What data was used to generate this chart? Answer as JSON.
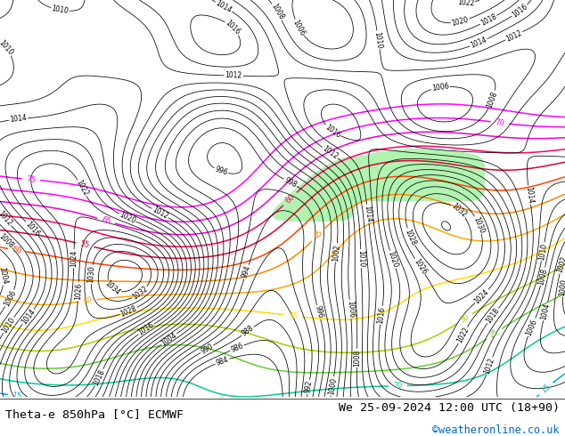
{
  "title_left": "Theta-e 850hPa [°C] ECMWF",
  "title_right": "We 25-09-2024 12:00 UTC (18+90)",
  "title_right2": "©weatheronline.co.uk",
  "bg_color": "#ffffff",
  "fig_width": 6.34,
  "fig_height": 4.9,
  "dpi": 100,
  "bottom_bar_height": 0.09,
  "title_fontsize": 9.5,
  "credit_fontsize": 8.5,
  "credit_color": "#0066cc",
  "theta_colors": {
    "75": "#ff00ff",
    "70": "#cc00cc",
    "65": "#ff66ff",
    "60": "#ff0066",
    "55": "#ff0000",
    "50": "#ff6600",
    "45": "#ff9900",
    "40": "#ffcc00",
    "35": "#cccc00",
    "30": "#99cc00",
    "25": "#00cc66",
    "20": "#00cccc",
    "15": "#0099ff",
    "10": "#0055ff",
    "5": "#0000cc"
  }
}
